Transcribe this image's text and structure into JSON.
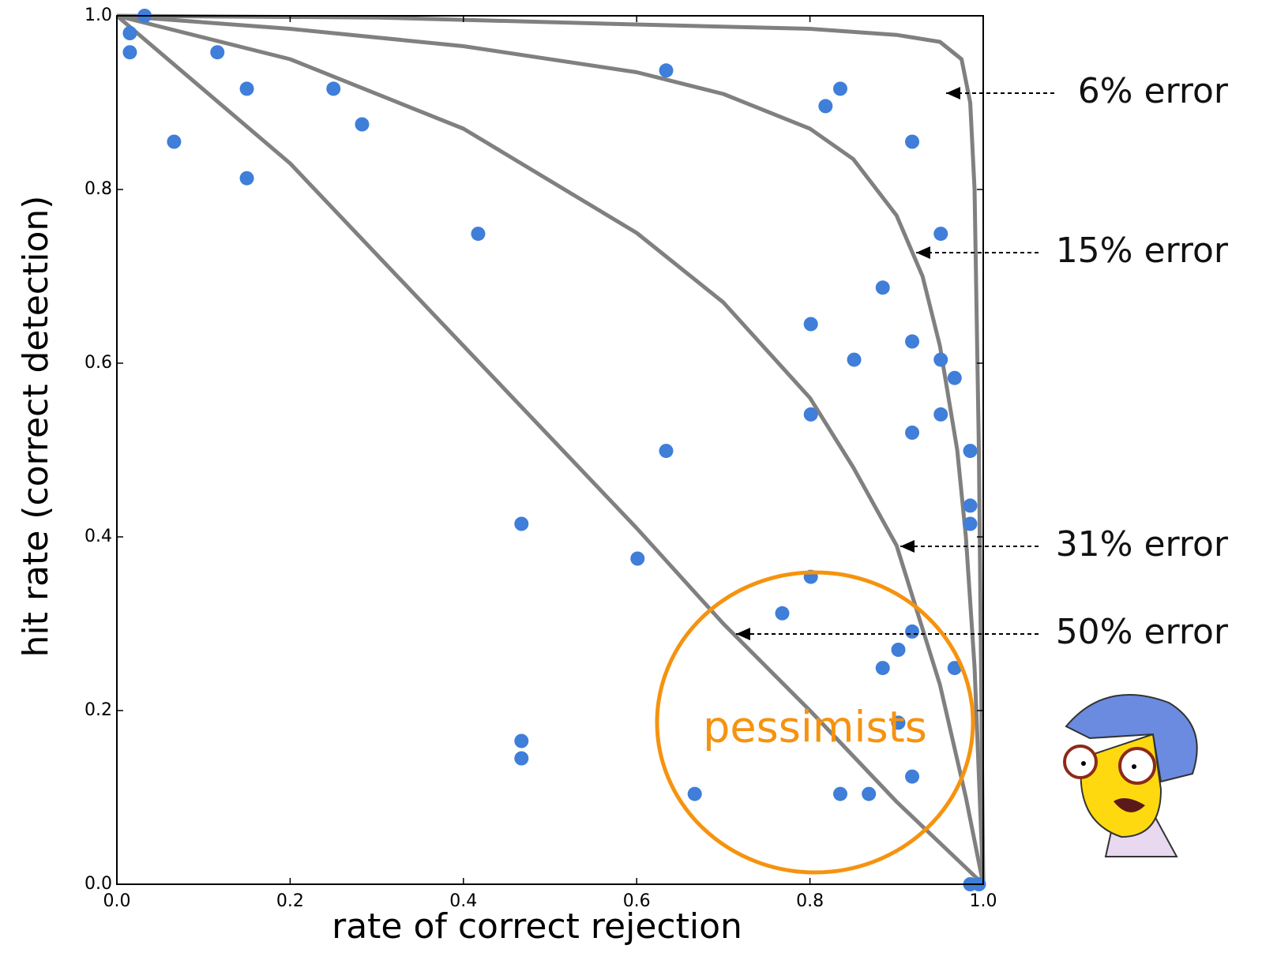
{
  "chart_data": {
    "type": "scatter",
    "xlabel": "rate of correct rejection",
    "ylabel": "hit rate (correct detection)",
    "xlim": [
      0,
      1
    ],
    "ylim": [
      0,
      1
    ],
    "xticks": [
      {
        "value": 0,
        "label": "0.0"
      },
      0.2,
      0.4,
      0.6,
      0.8,
      {
        "value": 1,
        "label": "1.0"
      }
    ],
    "yticks": [
      {
        "value": 0,
        "label": "0.0"
      },
      0.2,
      0.4,
      0.6,
      0.8,
      {
        "value": 1,
        "label": "1.0"
      }
    ],
    "color": "#3f7ed9",
    "x": [
      0.015,
      0.015,
      0.032,
      0.066,
      0.116,
      0.15,
      0.15,
      0.25,
      0.283,
      0.417,
      0.634,
      0.818,
      0.835,
      0.918,
      0.951,
      0.884,
      0.801,
      0.918,
      0.851,
      0.951,
      0.967,
      0.801,
      0.951,
      0.918,
      0.985,
      0.634,
      0.985,
      0.985,
      0.467,
      0.601,
      0.801,
      0.768,
      0.918,
      0.902,
      0.884,
      0.967,
      0.902,
      0.467,
      0.467,
      0.918,
      0.667,
      0.835,
      0.868,
      0.985,
      0.995
    ],
    "y": [
      0.98,
      0.958,
      1.0,
      0.855,
      0.958,
      0.916,
      0.813,
      0.916,
      0.875,
      0.749,
      0.937,
      0.896,
      0.916,
      0.855,
      0.749,
      0.687,
      0.645,
      0.625,
      0.604,
      0.604,
      0.583,
      0.541,
      0.541,
      0.52,
      0.499,
      0.499,
      0.436,
      0.415,
      0.415,
      0.375,
      0.354,
      0.312,
      0.291,
      0.27,
      0.249,
      0.249,
      0.186,
      0.165,
      0.145,
      0.124,
      0.104,
      0.104,
      0.104,
      0,
      0
    ],
    "curve_color": "#808080",
    "curves": [
      {
        "x": [
          0,
          0.3,
          0.6,
          0.8,
          0.9,
          0.95,
          0.975,
          0.985,
          0.99,
          0.995,
          1
        ],
        "y": [
          1,
          0.998,
          0.99,
          0.985,
          0.978,
          0.97,
          0.95,
          0.9,
          0.8,
          0.5,
          0
        ]
      },
      {
        "x": [
          0,
          0.2,
          0.4,
          0.6,
          0.7,
          0.8,
          0.85,
          0.9,
          0.93,
          0.95,
          0.97,
          0.98,
          0.99,
          1
        ],
        "y": [
          1,
          0.985,
          0.965,
          0.935,
          0.91,
          0.87,
          0.835,
          0.77,
          0.7,
          0.62,
          0.5,
          0.4,
          0.25,
          0
        ]
      },
      {
        "x": [
          0,
          0.2,
          0.4,
          0.6,
          0.7,
          0.8,
          0.85,
          0.9,
          0.95,
          0.98,
          1
        ],
        "y": [
          1,
          0.95,
          0.87,
          0.75,
          0.67,
          0.56,
          0.48,
          0.39,
          0.23,
          0.1,
          0
        ]
      },
      {
        "x": [
          0,
          0.2,
          0.4,
          0.6,
          0.7,
          0.8,
          0.9,
          1
        ],
        "y": [
          1,
          0.83,
          0.62,
          0.41,
          0.3,
          0.2,
          0.095,
          0
        ]
      }
    ],
    "annotations": [
      "6% error",
      "15% error",
      "31% error",
      "50% error"
    ],
    "highlight": {
      "text": "pessimists",
      "color": "#f5930f"
    }
  }
}
